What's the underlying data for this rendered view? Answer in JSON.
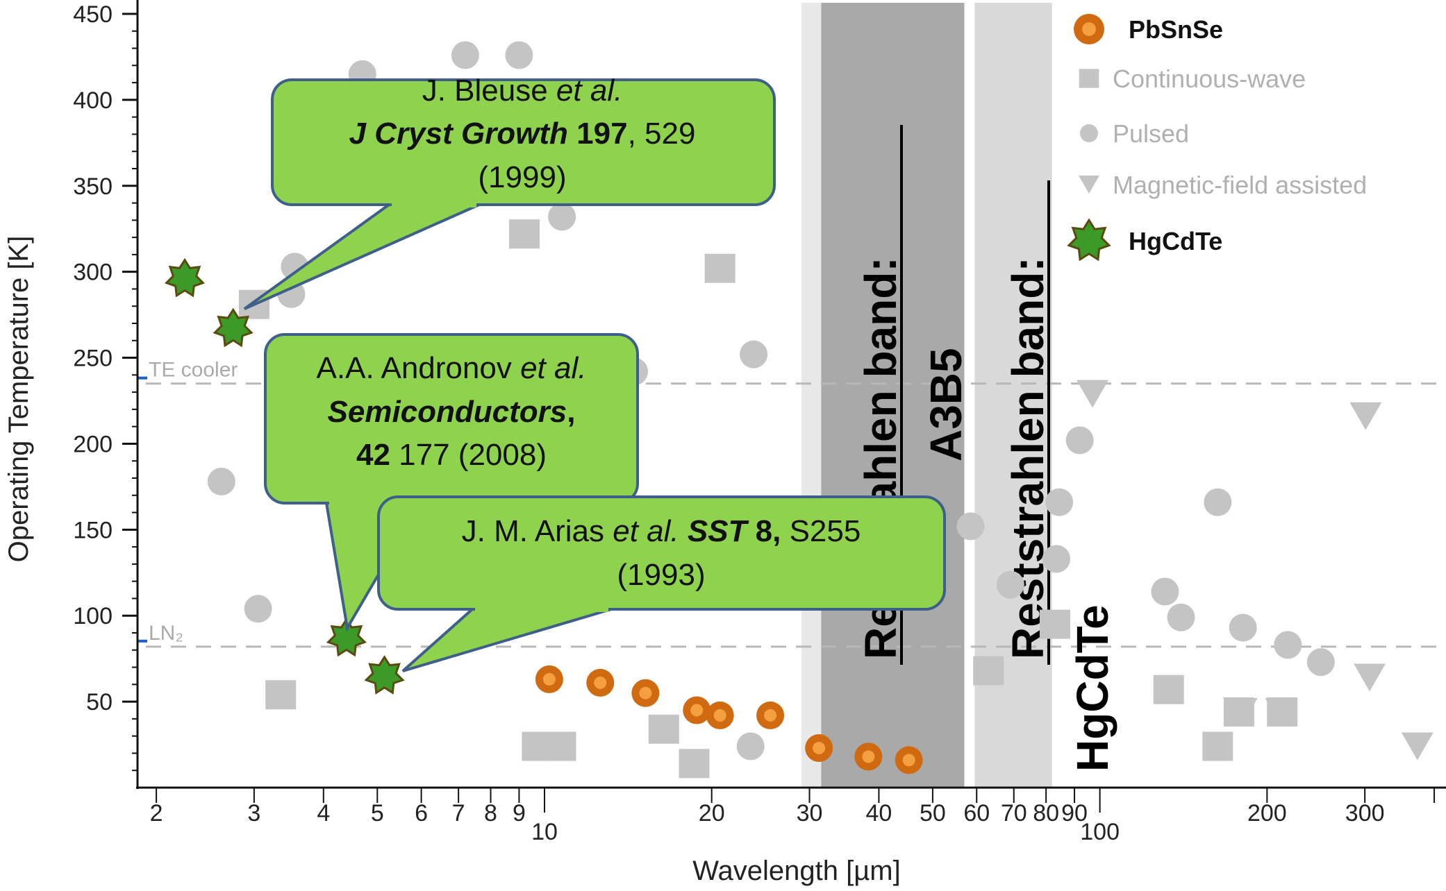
{
  "chart_data": {
    "type": "scatter",
    "xlabel": "Wavelength [µm]",
    "ylabel": "Operating Temperature [K]",
    "xscale": "log",
    "xlim": [
      1.85,
      420
    ],
    "ylim": [
      0,
      450
    ],
    "grid": false,
    "legend_position": "top-right",
    "x_ticks": [
      {
        "v": 2,
        "label": "2"
      },
      {
        "v": 3,
        "label": "3"
      },
      {
        "v": 4,
        "label": "4"
      },
      {
        "v": 5,
        "label": "5"
      },
      {
        "v": 6,
        "label": "6"
      },
      {
        "v": 7,
        "label": "7"
      },
      {
        "v": 8,
        "label": "8"
      },
      {
        "v": 9,
        "label": "9"
      },
      {
        "v": 10,
        "label": "10"
      },
      {
        "v": 20,
        "label": "20"
      },
      {
        "v": 30,
        "label": "30"
      },
      {
        "v": 40,
        "label": "40"
      },
      {
        "v": 50,
        "label": "50"
      },
      {
        "v": 60,
        "label": "60"
      },
      {
        "v": 70,
        "label": "70"
      },
      {
        "v": 80,
        "label": "80"
      },
      {
        "v": 90,
        "label": "90"
      },
      {
        "v": 100,
        "label": "100"
      },
      {
        "v": 200,
        "label": "200"
      },
      {
        "v": 300,
        "label": "300"
      }
    ],
    "y_ticks": [
      {
        "v": 50,
        "label": "50"
      },
      {
        "v": 100,
        "label": "100"
      },
      {
        "v": 150,
        "label": "150"
      },
      {
        "v": 200,
        "label": "200"
      },
      {
        "v": 250,
        "label": "250"
      },
      {
        "v": 300,
        "label": "300"
      },
      {
        "v": 350,
        "label": "350"
      },
      {
        "v": 400,
        "label": "400"
      },
      {
        "v": 450,
        "label": "450"
      }
    ],
    "reference_lines": [
      {
        "y": 235,
        "label": "TE cooler"
      },
      {
        "y": 82,
        "label": "LN₂"
      }
    ],
    "bands": [
      {
        "x_start": 29,
        "x_end": 57,
        "color": "#e8e8e8",
        "label": ""
      },
      {
        "x_start": 31.5,
        "x_end": 57,
        "color": "#a9a9a9",
        "label": "Reststrahlen band: A3B5"
      },
      {
        "x_start": 59.5,
        "x_end": 82,
        "color": "#d9d9d9",
        "label": "Reststrahlen band: HgCdTe"
      }
    ],
    "series": [
      {
        "name": "PbSnSe",
        "marker": "circle-orange",
        "color": "#d06a10",
        "points": [
          {
            "x": 10.2,
            "y": 63
          },
          {
            "x": 12.6,
            "y": 61
          },
          {
            "x": 15.2,
            "y": 55
          },
          {
            "x": 18.8,
            "y": 45
          },
          {
            "x": 20.7,
            "y": 42
          },
          {
            "x": 25.5,
            "y": 42
          },
          {
            "x": 31.2,
            "y": 23
          },
          {
            "x": 38.3,
            "y": 18
          },
          {
            "x": 45.3,
            "y": 16
          }
        ]
      },
      {
        "name": "Continuous-wave",
        "marker": "square",
        "color": "#c4c4c4",
        "points": [
          {
            "x": 3.0,
            "y": 281
          },
          {
            "x": 3.35,
            "y": 54
          },
          {
            "x": 9.2,
            "y": 322
          },
          {
            "x": 9.7,
            "y": 24
          },
          {
            "x": 10.7,
            "y": 24
          },
          {
            "x": 16.4,
            "y": 34
          },
          {
            "x": 18.6,
            "y": 14
          },
          {
            "x": 20.7,
            "y": 302
          },
          {
            "x": 63,
            "y": 68
          },
          {
            "x": 83,
            "y": 95
          },
          {
            "x": 133,
            "y": 57
          },
          {
            "x": 178,
            "y": 44
          },
          {
            "x": 163,
            "y": 24
          },
          {
            "x": 213,
            "y": 44
          }
        ]
      },
      {
        "name": "Pulsed",
        "marker": "circle",
        "color": "#c4c4c4",
        "points": [
          {
            "x": 2.62,
            "y": 178
          },
          {
            "x": 3.05,
            "y": 104
          },
          {
            "x": 3.5,
            "y": 287
          },
          {
            "x": 3.55,
            "y": 303
          },
          {
            "x": 4.7,
            "y": 415
          },
          {
            "x": 7.2,
            "y": 426
          },
          {
            "x": 9.0,
            "y": 426
          },
          {
            "x": 10.75,
            "y": 332
          },
          {
            "x": 14.5,
            "y": 242
          },
          {
            "x": 23.8,
            "y": 252
          },
          {
            "x": 23.5,
            "y": 24
          },
          {
            "x": 58.5,
            "y": 152
          },
          {
            "x": 69,
            "y": 118
          },
          {
            "x": 84.5,
            "y": 166
          },
          {
            "x": 83.5,
            "y": 133
          },
          {
            "x": 92,
            "y": 202
          },
          {
            "x": 131,
            "y": 114
          },
          {
            "x": 140,
            "y": 99
          },
          {
            "x": 163,
            "y": 166
          },
          {
            "x": 181,
            "y": 93
          },
          {
            "x": 218,
            "y": 83
          },
          {
            "x": 250,
            "y": 73
          }
        ]
      },
      {
        "name": "Magnetic-field assisted",
        "marker": "triangle-down",
        "color": "#c4c4c4",
        "points": [
          {
            "x": 97,
            "y": 229
          },
          {
            "x": 301,
            "y": 216
          },
          {
            "x": 306,
            "y": 64
          },
          {
            "x": 373,
            "y": 24
          },
          {
            "x": 180,
            "y": 44
          },
          {
            "x": 212,
            "y": 44
          }
        ]
      },
      {
        "name": "HgCdTe",
        "marker": "star-green",
        "color": "#3c9a28",
        "points": [
          {
            "x": 2.25,
            "y": 296
          },
          {
            "x": 2.75,
            "y": 267
          },
          {
            "x": 4.4,
            "y": 87
          },
          {
            "x": 5.15,
            "y": 65
          }
        ]
      }
    ],
    "annotations": [
      {
        "runs": [
          [
            {
              "t": "J. Bleuse "
            },
            {
              "t": "et al.",
              "i": true
            }
          ],
          [
            {
              "t": "J Cryst Growth",
              "b": true,
              "i": true
            },
            {
              "t": " 197",
              "b": true
            },
            {
              "t": ", 529"
            }
          ],
          [
            {
              "t": "(1999)"
            }
          ]
        ]
      },
      {
        "runs": [
          [
            {
              "t": "A.A. Andronov "
            },
            {
              "t": "et al.",
              "i": true
            }
          ],
          [
            {
              "t": "Semiconductors",
              "b": true,
              "i": true
            },
            {
              "t": ",",
              "b": true
            }
          ],
          [
            {
              "t": "42",
              "b": true
            },
            {
              "t": " 177 (2008)"
            }
          ]
        ]
      },
      {
        "runs": [
          [
            {
              "t": "J. M. Arias "
            },
            {
              "t": "et al.",
              "i": true
            },
            {
              "t": " "
            },
            {
              "t": "SST",
              "b": true,
              "i": true
            },
            {
              "t": " 8,",
              "b": true
            },
            {
              "t": " S255"
            }
          ],
          [
            {
              "t": "(1993)"
            }
          ]
        ]
      }
    ]
  },
  "legend": {
    "items": [
      {
        "label": "PbSnSe",
        "marker": "circle-orange",
        "color": "#111111",
        "bold": true
      },
      {
        "label": "Continuous-wave",
        "marker": "square",
        "color": "#b0b0b0",
        "bold": false
      },
      {
        "label": "Pulsed",
        "marker": "circle",
        "color": "#b0b0b0",
        "bold": false
      },
      {
        "label": "Magnetic-field assisted",
        "marker": "triangle-down",
        "color": "#b0b0b0",
        "bold": false
      },
      {
        "label": "HgCdTe",
        "marker": "star-green",
        "color": "#111111",
        "bold": true
      }
    ]
  },
  "colors": {
    "callout_fill": "#8fd24e",
    "callout_stroke": "#3e5f8a",
    "orange": "#d06a10",
    "gray_marker": "#c4c4c4"
  }
}
